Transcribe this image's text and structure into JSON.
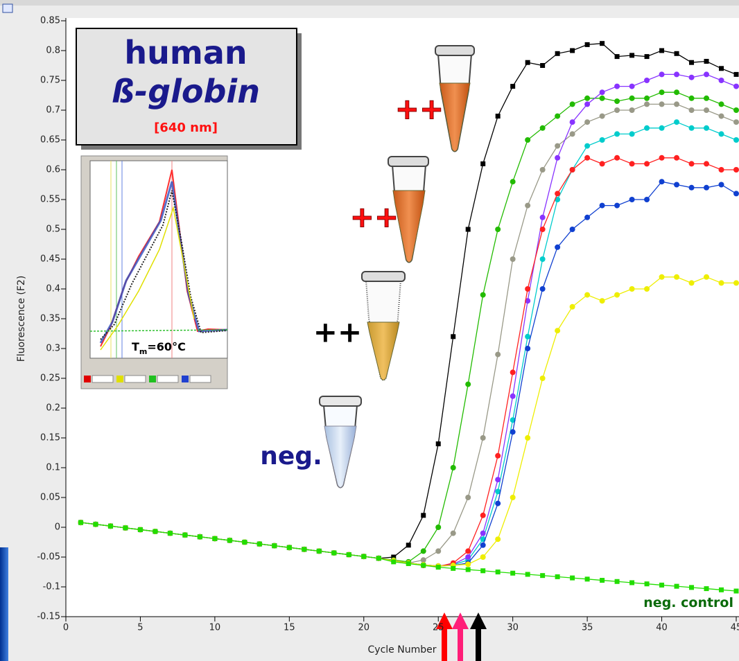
{
  "chart_data": {
    "type": "line",
    "x_label": "Cycle Number",
    "y_label": "Fluorescence (F2)",
    "xlim": [
      0,
      45
    ],
    "ylim": [
      -0.15,
      0.85
    ],
    "xticks": [
      0,
      5,
      10,
      15,
      20,
      25,
      30,
      35,
      40,
      45
    ],
    "yticks": [
      0.85,
      0.8,
      0.75,
      0.7,
      0.65,
      0.6,
      0.55,
      0.5,
      0.45,
      0.4,
      0.35,
      0.3,
      0.25,
      0.2,
      0.15,
      0.1,
      0.05,
      0,
      -0.05,
      -0.1,
      -0.15
    ],
    "x": [
      1,
      2,
      3,
      4,
      5,
      6,
      7,
      8,
      9,
      10,
      11,
      12,
      13,
      14,
      15,
      16,
      17,
      18,
      19,
      20,
      21,
      22,
      23,
      24,
      25,
      26,
      27,
      28,
      29,
      30,
      31,
      32,
      33,
      34,
      35,
      36,
      37,
      38,
      39,
      40,
      41,
      42,
      43,
      44,
      45
    ],
    "series": [
      {
        "color": "#000000",
        "marker": "square",
        "values": [
          0.008,
          0.005,
          0.002,
          -0.001,
          -0.004,
          -0.007,
          -0.01,
          -0.013,
          -0.016,
          -0.019,
          -0.022,
          -0.025,
          -0.028,
          -0.031,
          -0.034,
          -0.037,
          -0.04,
          -0.043,
          -0.046,
          -0.049,
          -0.052,
          -0.05,
          -0.03,
          0.02,
          0.14,
          0.32,
          0.5,
          0.61,
          0.69,
          0.74,
          0.78,
          0.775,
          0.795,
          0.8,
          0.81,
          0.812,
          0.79,
          0.792,
          0.79,
          0.8,
          0.795,
          0.78,
          0.782,
          0.77,
          0.76
        ]
      },
      {
        "color": "#22bb00",
        "marker": "circle",
        "values": [
          0.008,
          0.005,
          0.002,
          -0.001,
          -0.004,
          -0.007,
          -0.01,
          -0.013,
          -0.016,
          -0.019,
          -0.022,
          -0.025,
          -0.028,
          -0.031,
          -0.034,
          -0.037,
          -0.04,
          -0.043,
          -0.046,
          -0.049,
          -0.052,
          -0.055,
          -0.058,
          -0.04,
          0.0,
          0.1,
          0.24,
          0.39,
          0.5,
          0.58,
          0.65,
          0.67,
          0.69,
          0.71,
          0.72,
          0.72,
          0.715,
          0.72,
          0.72,
          0.73,
          0.73,
          0.72,
          0.72,
          0.71,
          0.7
        ]
      },
      {
        "color": "#999988",
        "marker": "circle",
        "values": [
          0.008,
          0.005,
          0.002,
          -0.001,
          -0.004,
          -0.007,
          -0.01,
          -0.013,
          -0.016,
          -0.019,
          -0.022,
          -0.025,
          -0.028,
          -0.031,
          -0.034,
          -0.037,
          -0.04,
          -0.043,
          -0.046,
          -0.049,
          -0.052,
          -0.056,
          -0.06,
          -0.055,
          -0.04,
          -0.01,
          0.05,
          0.15,
          0.29,
          0.45,
          0.54,
          0.6,
          0.64,
          0.66,
          0.68,
          0.69,
          0.7,
          0.7,
          0.71,
          0.71,
          0.71,
          0.7,
          0.7,
          0.69,
          0.68
        ]
      },
      {
        "color": "#00cccc",
        "marker": "circle",
        "values": [
          0.008,
          0.005,
          0.002,
          -0.001,
          -0.004,
          -0.007,
          -0.01,
          -0.013,
          -0.016,
          -0.019,
          -0.022,
          -0.025,
          -0.028,
          -0.031,
          -0.034,
          -0.037,
          -0.04,
          -0.043,
          -0.046,
          -0.049,
          -0.052,
          -0.056,
          -0.06,
          -0.063,
          -0.065,
          -0.063,
          -0.055,
          -0.02,
          0.06,
          0.18,
          0.32,
          0.45,
          0.55,
          0.6,
          0.64,
          0.65,
          0.66,
          0.66,
          0.67,
          0.67,
          0.68,
          0.67,
          0.67,
          0.66,
          0.65
        ]
      },
      {
        "color": "#8833ff",
        "marker": "circle",
        "values": [
          0.008,
          0.005,
          0.002,
          -0.001,
          -0.004,
          -0.007,
          -0.01,
          -0.013,
          -0.016,
          -0.019,
          -0.022,
          -0.025,
          -0.028,
          -0.031,
          -0.034,
          -0.037,
          -0.04,
          -0.043,
          -0.046,
          -0.049,
          -0.052,
          -0.056,
          -0.06,
          -0.063,
          -0.065,
          -0.062,
          -0.05,
          -0.01,
          0.08,
          0.22,
          0.38,
          0.52,
          0.62,
          0.68,
          0.71,
          0.73,
          0.74,
          0.74,
          0.75,
          0.76,
          0.76,
          0.755,
          0.76,
          0.75,
          0.74
        ]
      },
      {
        "color": "#ff2020",
        "marker": "circle",
        "values": [
          0.008,
          0.005,
          0.002,
          -0.001,
          -0.004,
          -0.007,
          -0.01,
          -0.013,
          -0.016,
          -0.019,
          -0.022,
          -0.025,
          -0.028,
          -0.031,
          -0.034,
          -0.037,
          -0.04,
          -0.043,
          -0.046,
          -0.049,
          -0.052,
          -0.056,
          -0.06,
          -0.064,
          -0.066,
          -0.06,
          -0.04,
          0.02,
          0.12,
          0.26,
          0.4,
          0.5,
          0.56,
          0.6,
          0.62,
          0.61,
          0.62,
          0.61,
          0.61,
          0.62,
          0.62,
          0.61,
          0.61,
          0.6,
          0.6
        ]
      },
      {
        "color": "#1040d0",
        "marker": "circle",
        "values": [
          0.008,
          0.005,
          0.002,
          -0.001,
          -0.004,
          -0.007,
          -0.01,
          -0.013,
          -0.016,
          -0.019,
          -0.022,
          -0.025,
          -0.028,
          -0.031,
          -0.034,
          -0.037,
          -0.04,
          -0.043,
          -0.046,
          -0.049,
          -0.052,
          -0.056,
          -0.06,
          -0.063,
          -0.065,
          -0.064,
          -0.06,
          -0.03,
          0.04,
          0.16,
          0.3,
          0.4,
          0.47,
          0.5,
          0.52,
          0.54,
          0.54,
          0.55,
          0.55,
          0.58,
          0.575,
          0.57,
          0.57,
          0.575,
          0.56
        ]
      },
      {
        "color": "#eeee00",
        "marker": "circle",
        "values": [
          0.008,
          0.005,
          0.002,
          -0.001,
          -0.004,
          -0.007,
          -0.01,
          -0.013,
          -0.016,
          -0.019,
          -0.022,
          -0.025,
          -0.028,
          -0.031,
          -0.034,
          -0.037,
          -0.04,
          -0.043,
          -0.046,
          -0.049,
          -0.052,
          -0.056,
          -0.06,
          -0.063,
          -0.065,
          -0.064,
          -0.062,
          -0.05,
          -0.02,
          0.05,
          0.15,
          0.25,
          0.33,
          0.37,
          0.39,
          0.38,
          0.39,
          0.4,
          0.4,
          0.42,
          0.42,
          0.41,
          0.42,
          0.41,
          0.41
        ]
      },
      {
        "color": "#22dd00",
        "marker": "square",
        "values": [
          0.008,
          0.005,
          0.002,
          -0.001,
          -0.004,
          -0.007,
          -0.01,
          -0.013,
          -0.016,
          -0.019,
          -0.022,
          -0.025,
          -0.028,
          -0.031,
          -0.034,
          -0.037,
          -0.04,
          -0.043,
          -0.046,
          -0.049,
          -0.052,
          -0.058,
          -0.061,
          -0.064,
          -0.067,
          -0.069,
          -0.071,
          -0.073,
          -0.075,
          -0.077,
          -0.079,
          -0.081,
          -0.083,
          -0.085,
          -0.087,
          -0.089,
          -0.091,
          -0.093,
          -0.095,
          -0.097,
          -0.099,
          -0.101,
          -0.103,
          -0.105,
          -0.107
        ]
      }
    ],
    "annotations": {
      "title": "human",
      "subtitle": "ß-globin",
      "wavelength": "[640 nm]",
      "plus_labels": [
        "++",
        "++",
        "++"
      ],
      "neg_label": "neg.",
      "neg_control": "neg. control",
      "tm": [
        "T",
        "m",
        "=60°C"
      ]
    }
  }
}
